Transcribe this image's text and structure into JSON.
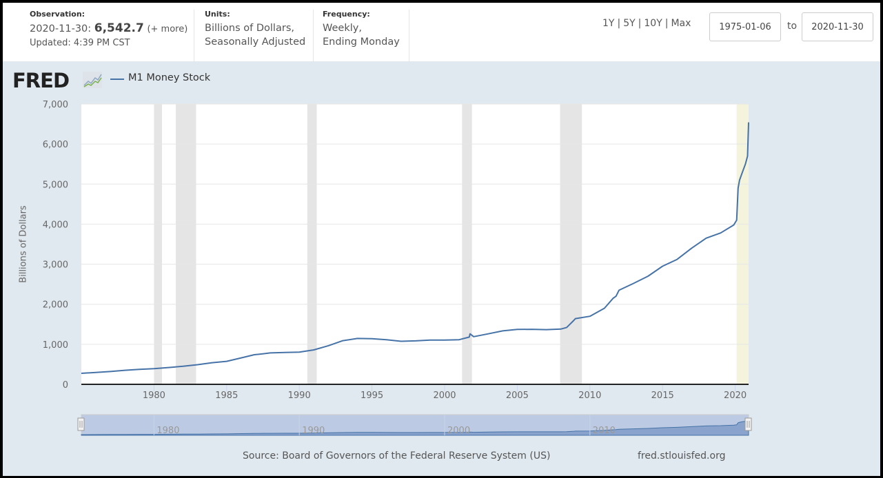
{
  "header": {
    "observation_label": "Observation:",
    "observation_date": "2020-11-30:",
    "observation_value": "6,542.7",
    "observation_more": "(+ more)",
    "updated": "Updated: 4:39 PM CST",
    "units_label": "Units:",
    "units_line1": "Billions of Dollars,",
    "units_line2": "Seasonally Adjusted",
    "frequency_label": "Frequency:",
    "frequency_line1": "Weekly,",
    "frequency_line2": "Ending Monday",
    "ranges": [
      "1Y",
      "5Y",
      "10Y",
      "Max"
    ],
    "range_separator": "|",
    "start_date": "1975-01-06",
    "to_label": "to",
    "end_date": "2020-11-30"
  },
  "logo": {
    "text": "FRED",
    "icon": "chart-line-icon"
  },
  "colors": {
    "series": "#4572a7",
    "recession": "#e5e5e5",
    "highlight": "#f4f3dc",
    "navigator_fill": "#bccbe3",
    "background": "#e1e9f0"
  },
  "chart_data": {
    "type": "line",
    "title": "",
    "xlabel": "",
    "ylabel": "Billions of Dollars",
    "xlim": [
      1975.0,
      2020.92
    ],
    "ylim": [
      0,
      7000
    ],
    "yticks": [
      0,
      1000,
      2000,
      3000,
      4000,
      5000,
      6000,
      7000
    ],
    "ytick_labels": [
      "0",
      "1,000",
      "2,000",
      "3,000",
      "4,000",
      "5,000",
      "6,000",
      "7,000"
    ],
    "xticks": [
      1980,
      1985,
      1990,
      1995,
      2000,
      2005,
      2010,
      2015,
      2020
    ],
    "xtick_labels": [
      "1980",
      "1985",
      "1990",
      "1995",
      "2000",
      "2005",
      "2010",
      "2015",
      "2020"
    ],
    "grid": true,
    "legend": {
      "position": "top-left",
      "entries": [
        "M1 Money Stock"
      ]
    },
    "recessions": [
      [
        1980.0,
        1980.55
      ],
      [
        1981.5,
        1982.9
      ],
      [
        1990.55,
        1991.2
      ],
      [
        2001.2,
        2001.88
      ],
      [
        2007.95,
        2009.45
      ]
    ],
    "highlight_range": [
      2020.1,
      2020.92
    ],
    "series": [
      {
        "name": "M1 Money Stock",
        "x": [
          1975.0,
          1976,
          1977,
          1978,
          1979,
          1980,
          1981,
          1982,
          1983,
          1984,
          1985,
          1986,
          1986.9,
          1987.2,
          1988,
          1989,
          1990,
          1991,
          1992,
          1993,
          1994,
          1995,
          1996,
          1997,
          1998,
          1999,
          2000,
          2001,
          2001.7,
          2001.75,
          2002,
          2003,
          2004,
          2005,
          2006,
          2007,
          2008,
          2008.4,
          2008.9,
          2009,
          2010,
          2011,
          2011.6,
          2011.8,
          2012,
          2013,
          2014,
          2015,
          2016,
          2017,
          2018,
          2019,
          2019.9,
          2020.1,
          2020.2,
          2020.3,
          2020.5,
          2020.7,
          2020.85,
          2020.92
        ],
        "y": [
          275,
          295,
          320,
          350,
          375,
          390,
          420,
          450,
          490,
          540,
          575,
          660,
          740,
          750,
          785,
          795,
          805,
          860,
          965,
          1090,
          1145,
          1140,
          1115,
          1075,
          1085,
          1105,
          1105,
          1115,
          1180,
          1260,
          1190,
          1260,
          1335,
          1370,
          1375,
          1365,
          1380,
          1420,
          1600,
          1640,
          1700,
          1900,
          2150,
          2200,
          2350,
          2520,
          2700,
          2950,
          3120,
          3400,
          3650,
          3780,
          3980,
          4100,
          4900,
          5100,
          5300,
          5500,
          5700,
          6542.7
        ]
      }
    ],
    "navigator_labels": [
      "1980",
      "1990",
      "2000",
      "2010"
    ]
  },
  "footer": {
    "source": "Source: Board of Governors of the Federal Reserve System (US)",
    "site": "fred.stlouisfed.org"
  }
}
